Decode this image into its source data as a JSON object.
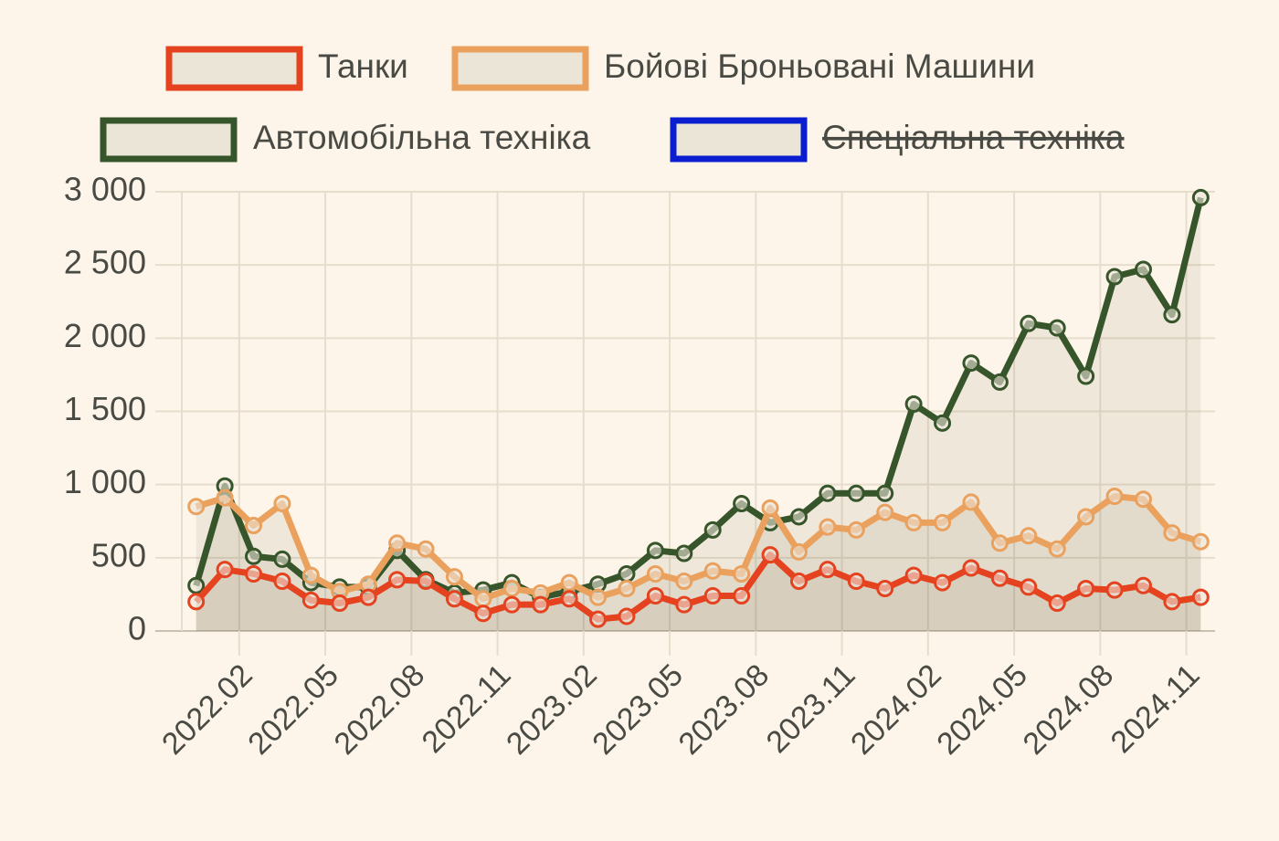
{
  "chart_data": {
    "type": "line",
    "x": [
      0,
      1,
      2,
      3,
      4,
      5,
      6,
      7,
      8,
      9,
      10,
      11,
      12,
      13,
      14,
      15,
      16,
      17,
      18,
      19,
      20,
      21,
      22,
      23,
      24,
      25,
      26,
      27,
      28,
      29,
      30,
      31,
      32,
      33,
      34,
      35
    ],
    "xlim": [
      -0.5,
      35.5
    ],
    "xticks": [
      {
        "value": 1.5,
        "label": "2022.02"
      },
      {
        "value": 4.5,
        "label": "2022.05"
      },
      {
        "value": 7.5,
        "label": "2022.08"
      },
      {
        "value": 10.5,
        "label": "2022.11"
      },
      {
        "value": 13.5,
        "label": "2023.02"
      },
      {
        "value": 16.5,
        "label": "2023.05"
      },
      {
        "value": 19.5,
        "label": "2023.08"
      },
      {
        "value": 22.5,
        "label": "2023.11"
      },
      {
        "value": 25.5,
        "label": "2024.02"
      },
      {
        "value": 28.5,
        "label": "2024.05"
      },
      {
        "value": 31.5,
        "label": "2024.08"
      },
      {
        "value": 34.5,
        "label": "2024.11"
      }
    ],
    "ylim": [
      0,
      3000
    ],
    "yticks": [
      0,
      500,
      {
        "value": 1000,
        "label": "1 000"
      },
      {
        "value": 1500,
        "label": "1 500"
      },
      {
        "value": 2000,
        "label": "2 000"
      },
      {
        "value": 2500,
        "label": "2 500"
      },
      {
        "value": 3000,
        "label": "3 000"
      }
    ],
    "grid": true,
    "legend": "top",
    "series": [
      {
        "name": "Танки",
        "color": "#e5421f",
        "values": [
          200,
          420,
          390,
          340,
          210,
          190,
          230,
          350,
          340,
          220,
          120,
          180,
          180,
          220,
          80,
          100,
          240,
          180,
          240,
          240,
          520,
          340,
          420,
          340,
          290,
          380,
          330,
          430,
          360,
          300,
          190,
          290,
          280,
          310,
          200,
          230
        ]
      },
      {
        "name": "Бойові Броньовані Машини",
        "color": "#eba15e",
        "values": [
          850,
          910,
          720,
          870,
          380,
          270,
          320,
          600,
          560,
          370,
          220,
          290,
          260,
          330,
          230,
          290,
          390,
          340,
          410,
          390,
          840,
          540,
          710,
          690,
          810,
          740,
          740,
          880,
          600,
          650,
          560,
          780,
          920,
          900,
          670,
          610
        ]
      },
      {
        "name": "Автомобільна техніка",
        "color": "#37552a",
        "values": [
          310,
          990,
          510,
          490,
          330,
          300,
          300,
          550,
          350,
          260,
          280,
          330,
          230,
          270,
          320,
          390,
          550,
          530,
          690,
          870,
          740,
          780,
          940,
          940,
          940,
          1550,
          1420,
          1830,
          1700,
          2100,
          2070,
          1740,
          2420,
          2470,
          2160,
          2960
        ]
      },
      {
        "name": "Спеціальна техніка",
        "color": "#0a1ed0",
        "hidden": true
      }
    ]
  }
}
